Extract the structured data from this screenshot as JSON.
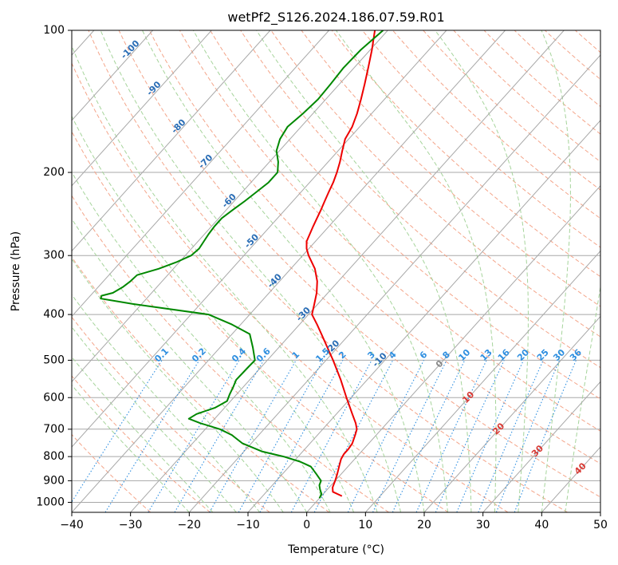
{
  "chart_data": {
    "type": "line",
    "subtype": "skew-t log-p diagram",
    "title": "wetPf2_S126.2024.186.07.59.R01",
    "xlabel": "Temperature (°C)",
    "ylabel": "Pressure (hPa)",
    "xlim": [
      -40,
      50
    ],
    "ylim": [
      1050,
      100
    ],
    "y_scale": "log",
    "grid": true,
    "x_ticks": [
      -40,
      -30,
      -20,
      -10,
      0,
      10,
      20,
      30,
      40,
      50
    ],
    "x_tick_labels": [
      "−40",
      "−30",
      "−20",
      "−10",
      "0",
      "10",
      "20",
      "30",
      "40",
      "50"
    ],
    "y_ticks": [
      100,
      200,
      300,
      400,
      500,
      600,
      700,
      800,
      900,
      1000
    ],
    "y_tick_labels": [
      "100",
      "200",
      "300",
      "400",
      "500",
      "600",
      "700",
      "800",
      "900",
      "1000"
    ],
    "series": [
      {
        "role": "temperature",
        "color": "#ee0000",
        "pressure": [
          970,
          950,
          930,
          900,
          870,
          840,
          810,
          790,
          770,
          750,
          720,
          700,
          680,
          650,
          600,
          550,
          500,
          470,
          440,
          420,
          400,
          380,
          360,
          340,
          320,
          300,
          290,
          280,
          260,
          250,
          240,
          230,
          220,
          210,
          200,
          190,
          180,
          170,
          160,
          150,
          140,
          130,
          120,
          110,
          100
        ],
        "temperature": [
          3.5,
          1.3,
          0.6,
          0.0,
          -0.7,
          -1.5,
          -2.3,
          -2.6,
          -2.6,
          -2.8,
          -3.6,
          -4.2,
          -5.3,
          -7.3,
          -10.8,
          -14.5,
          -18.8,
          -21.7,
          -24.8,
          -27.0,
          -29.4,
          -30.6,
          -31.9,
          -33.6,
          -35.9,
          -39.0,
          -40.4,
          -41.5,
          -42.7,
          -43.3,
          -43.9,
          -44.6,
          -45.3,
          -46.0,
          -46.9,
          -48.0,
          -49.3,
          -50.6,
          -51.3,
          -52.5,
          -54.0,
          -55.7,
          -57.6,
          -59.7,
          -62.2
        ]
      },
      {
        "role": "dewpoint",
        "color": "#008800",
        "pressure": [
          980,
          960,
          940,
          920,
          900,
          870,
          840,
          820,
          800,
          780,
          750,
          720,
          700,
          680,
          665,
          650,
          630,
          610,
          590,
          570,
          550,
          520,
          500,
          470,
          440,
          420,
          400,
          380,
          370,
          365,
          360,
          350,
          340,
          330,
          320,
          310,
          300,
          290,
          280,
          270,
          260,
          250,
          240,
          230,
          220,
          210,
          200,
          190,
          180,
          170,
          160,
          150,
          140,
          130,
          120,
          110,
          100
        ],
        "temperature": [
          0.0,
          -0.3,
          -1.2,
          -2.0,
          -2.4,
          -4.3,
          -6.3,
          -8.9,
          -12.5,
          -17.0,
          -21.5,
          -24.6,
          -27.5,
          -31.7,
          -34.4,
          -33.8,
          -31.6,
          -30.6,
          -31.2,
          -31.7,
          -32.3,
          -32.2,
          -32.1,
          -34.4,
          -37.0,
          -41.5,
          -47.0,
          -61.5,
          -67.8,
          -68.1,
          -66.6,
          -65.8,
          -65.4,
          -65.2,
          -62.5,
          -60.5,
          -59.0,
          -58.7,
          -59.0,
          -59.3,
          -59.5,
          -59.5,
          -58.9,
          -58.2,
          -57.6,
          -57.0,
          -57.0,
          -58.5,
          -60.5,
          -61.7,
          -62.3,
          -61.7,
          -61.3,
          -61.5,
          -61.8,
          -61.6,
          -60.8
        ]
      }
    ],
    "isotherm_labels": [
      "-100",
      "-90",
      "-80",
      "-70",
      "-60",
      "-50",
      "-40",
      "-30",
      "-20",
      "-10"
    ],
    "isotherm_label_values": [
      -100,
      -90,
      -80,
      -70,
      -60,
      -50,
      -40,
      -30,
      -20,
      -10
    ],
    "mixing_ratio_labels": [
      "0.1",
      "0.2",
      "0.4",
      "0.6",
      "1",
      "1.5",
      "2",
      "3",
      "4",
      "6",
      "8",
      "10",
      "13",
      "16",
      "20",
      "25",
      "30",
      "36"
    ],
    "mixing_ratio_values": [
      0.1,
      0.2,
      0.4,
      0.6,
      1,
      1.5,
      2,
      3,
      4,
      6,
      8,
      10,
      13,
      16,
      20,
      25,
      30,
      36
    ],
    "moist_adiabat_labels": [
      "0",
      "10",
      "20",
      "30",
      "40"
    ],
    "moist_adiabat_values": [
      0,
      10,
      20,
      30,
      40
    ],
    "colors": {
      "temperature": "#ee0000",
      "dewpoint": "#008800",
      "isotherm": "#a8a8a8",
      "isotherm_label": "#2a6db5",
      "dry_adiabat": "#f4a58a",
      "moist_adiabat": "#a6d49b",
      "mixing_ratio": "#2f8fe0",
      "mixing_label": "#2f8fe0",
      "moist_label_zero": "#888888",
      "moist_label": "#d83a34",
      "thick_curve": "#d7b790"
    }
  }
}
